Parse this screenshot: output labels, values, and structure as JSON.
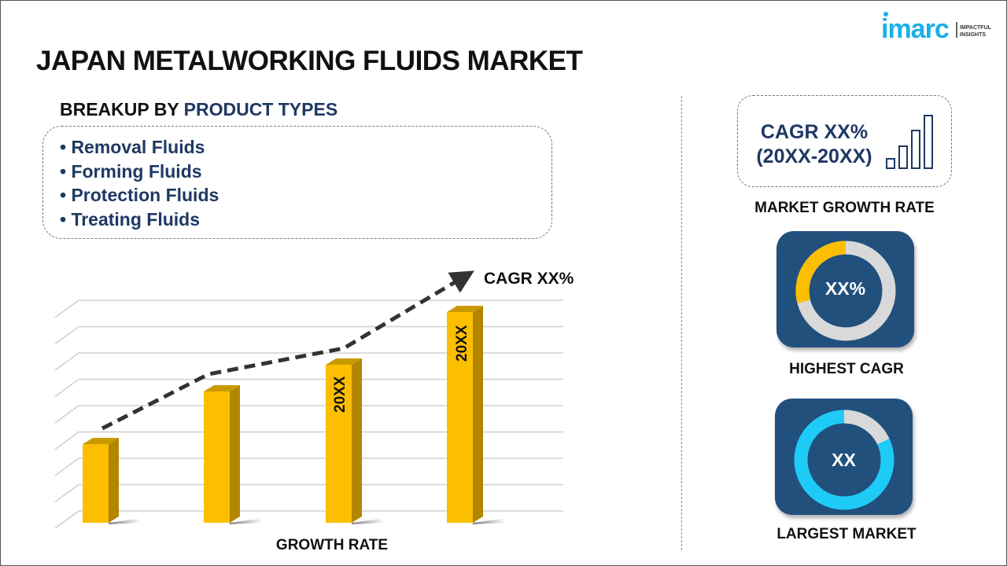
{
  "header": {
    "title": "JAPAN METALWORKING FLUIDS MARKET",
    "logo_text": "imarc",
    "logo_tagline": [
      "IMPACTFUL",
      "INSIGHTS"
    ]
  },
  "breakup": {
    "prefix": "BREAKUP BY ",
    "highlight": "PRODUCT TYPES",
    "items": [
      "• Removal Fluids",
      "• Forming Fluids",
      "• Protection Fluids",
      "• Treating Fluids"
    ]
  },
  "chart": {
    "bar_labels": [
      "20XX",
      "20XX"
    ],
    "trend_label": "CAGR XX%",
    "xlabel": "GROWTH RATE",
    "bar_color": "#fcbf00",
    "trend_line_color": "#333333"
  },
  "market_growth": {
    "line1": "CAGR XX%",
    "line2": "(20XX-20XX)",
    "label": "MARKET GROWTH RATE",
    "icon": "bar-growth-icon"
  },
  "highest_cagr": {
    "value": "XX%",
    "label": "HIGHEST CAGR",
    "fill_fraction": 0.29,
    "accent": "#fcbf00"
  },
  "largest_market": {
    "value": "XX",
    "label": "LARGEST MARKET",
    "fill_fraction": 0.82,
    "accent": "#1ecbf7"
  },
  "colors": {
    "navy": "#1f3864",
    "card": "#21507d",
    "logo": "#1ab0e6"
  }
}
